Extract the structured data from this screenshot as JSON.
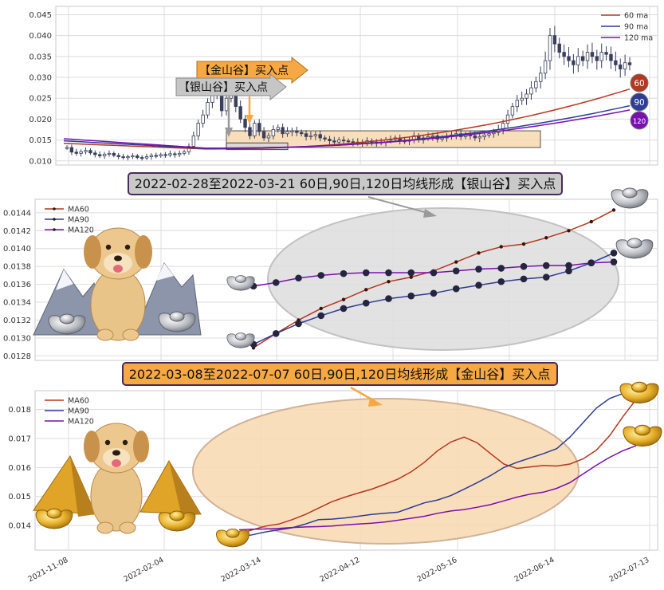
{
  "colors": {
    "ma60": "#b5371f",
    "ma90": "#2d3c96",
    "ma120": "#7a0fb0",
    "gold_fill": "#f5a844",
    "gold_zone": "#f8d9b0",
    "silver_zone": "#dedede",
    "candle": "#3a3f5c",
    "grid": "#dcdcdc"
  },
  "icons": [
    "silver-ingot-icon",
    "gold-ingot-icon",
    "dog-mascot-icon",
    "mountain-icon",
    "gold-pyramid-icon"
  ],
  "chart_data": [
    {
      "type": "candlestick",
      "legend": [
        "60 ma",
        "90 ma",
        "120 ma"
      ],
      "ylim": [
        0.009,
        0.047
      ],
      "yticks": [
        "0.010",
        "0.015",
        "0.020",
        "0.025",
        "0.030",
        "0.035",
        "0.040",
        "0.045"
      ],
      "annotations": {
        "gold_label": "【金山谷】买入点",
        "silver_label": "【银山谷】买入点"
      },
      "end_badges": [
        "60",
        "90",
        "120"
      ],
      "closes": [
        0.0132,
        0.0121,
        0.0118,
        0.0122,
        0.0125,
        0.0119,
        0.0115,
        0.0112,
        0.0116,
        0.0118,
        0.0113,
        0.011,
        0.0108,
        0.011,
        0.0112,
        0.0108,
        0.0107,
        0.011,
        0.0113,
        0.0112,
        0.0115,
        0.0114,
        0.0117,
        0.0115,
        0.0118,
        0.0122,
        0.0135,
        0.016,
        0.019,
        0.021,
        0.024,
        0.026,
        0.028,
        0.022,
        0.025,
        0.027,
        0.023,
        0.02,
        0.018,
        0.016,
        0.019,
        0.017,
        0.0155,
        0.016,
        0.0175,
        0.018,
        0.0165,
        0.017,
        0.0172,
        0.0168,
        0.0165,
        0.0158,
        0.016,
        0.0163,
        0.0155,
        0.0152,
        0.0148,
        0.0145,
        0.015,
        0.0148,
        0.0146,
        0.0143,
        0.0145,
        0.0143,
        0.0148,
        0.0142,
        0.0145,
        0.0144,
        0.015,
        0.0152,
        0.0155,
        0.0148,
        0.0147,
        0.015,
        0.016,
        0.015,
        0.0155,
        0.0158,
        0.016,
        0.0152,
        0.0155,
        0.0158,
        0.0162,
        0.0165,
        0.0158,
        0.0163,
        0.016,
        0.0155,
        0.0158,
        0.0162,
        0.0165,
        0.0168,
        0.0175,
        0.019,
        0.021,
        0.023,
        0.0245,
        0.025,
        0.026,
        0.0275,
        0.029,
        0.031,
        0.034,
        0.04,
        0.038,
        0.036,
        0.035,
        0.034,
        0.033,
        0.035,
        0.034,
        0.036,
        0.035,
        0.034,
        0.036,
        0.0355,
        0.034,
        0.033,
        0.032,
        0.0335,
        0.033
      ],
      "series": [
        {
          "name": "60 ma",
          "start": 0.0142,
          "end": 0.0272
        },
        {
          "name": "90 ma",
          "start": 0.0148,
          "end": 0.0232
        },
        {
          "name": "120 ma",
          "start": 0.0153,
          "end": 0.0222
        }
      ]
    },
    {
      "type": "line",
      "banner": "2022-02-28至2022-03-21 60日,90日,120日均线形成【银山谷】买入点",
      "ylim": [
        0.01275,
        0.01455
      ],
      "yticks": [
        "0.0128",
        "0.0130",
        "0.0132",
        "0.0134",
        "0.0136",
        "0.0138",
        "0.0140",
        "0.0142",
        "0.0144"
      ],
      "series": [
        {
          "name": "MA60",
          "values": [
            0.01289,
            0.01305,
            0.0132,
            0.01333,
            0.01343,
            0.01354,
            0.01363,
            0.01368,
            0.01375,
            0.01385,
            0.01395,
            0.01402,
            0.01405,
            0.01412,
            0.0142,
            0.0143,
            0.01443
          ]
        },
        {
          "name": "MA90",
          "values": [
            0.01293,
            0.01305,
            0.01316,
            0.01325,
            0.01333,
            0.01339,
            0.01344,
            0.01347,
            0.0135,
            0.01355,
            0.01359,
            0.01363,
            0.01366,
            0.01368,
            0.01375,
            0.01384,
            0.01395
          ]
        },
        {
          "name": "MA120",
          "values": [
            0.01358,
            0.01362,
            0.01367,
            0.0137,
            0.01372,
            0.01373,
            0.01373,
            0.01373,
            0.01373,
            0.01375,
            0.01377,
            0.01378,
            0.0138,
            0.01381,
            0.01381,
            0.01384,
            0.01385
          ]
        }
      ]
    },
    {
      "type": "line",
      "banner": "2022-03-08至2022-07-07 60日,90日,120日均线形成【金山谷】买入点",
      "ylim": [
        0.01315,
        0.01865
      ],
      "yticks": [
        "0.014",
        "0.015",
        "0.016",
        "0.017",
        "0.018"
      ],
      "x_ticks": [
        "2021-11-08",
        "2022-02-04",
        "2022-03-14",
        "2022-04-12",
        "2022-05-16",
        "2022-06-14",
        "2022-07-13"
      ],
      "series": [
        {
          "name": "MA60",
          "values": [
            0.01372,
            0.01385,
            0.01398,
            0.01405,
            0.0142,
            0.01438,
            0.0146,
            0.01482,
            0.01498,
            0.01512,
            0.01525,
            0.01542,
            0.0156,
            0.01585,
            0.01618,
            0.01658,
            0.01688,
            0.01705,
            0.01685,
            0.01648,
            0.01612,
            0.01597,
            0.01602,
            0.01607,
            0.01605,
            0.01612,
            0.0163,
            0.0166,
            0.0171,
            0.01775,
            0.01835
          ]
        },
        {
          "name": "MA90",
          "values": [
            0.01358,
            0.01368,
            0.01378,
            0.01385,
            0.01392,
            0.01405,
            0.0142,
            0.01422,
            0.01426,
            0.01432,
            0.01438,
            0.01442,
            0.01446,
            0.01462,
            0.01478,
            0.01488,
            0.01503,
            0.01525,
            0.01548,
            0.01572,
            0.016,
            0.01618,
            0.01633,
            0.01648,
            0.01665,
            0.01705,
            0.01755,
            0.01805,
            0.01838,
            0.01855,
            0.01862
          ]
        },
        {
          "name": "MA120",
          "values": [
            0.01385,
            0.01387,
            0.01388,
            0.0139,
            0.01393,
            0.01395,
            0.01396,
            0.01398,
            0.01402,
            0.01405,
            0.01408,
            0.01412,
            0.01418,
            0.01425,
            0.01432,
            0.01442,
            0.0145,
            0.01455,
            0.01463,
            0.01472,
            0.01485,
            0.01498,
            0.01508,
            0.01515,
            0.01528,
            0.01548,
            0.01578,
            0.01608,
            0.01635,
            0.01658,
            0.01675
          ]
        }
      ]
    }
  ]
}
